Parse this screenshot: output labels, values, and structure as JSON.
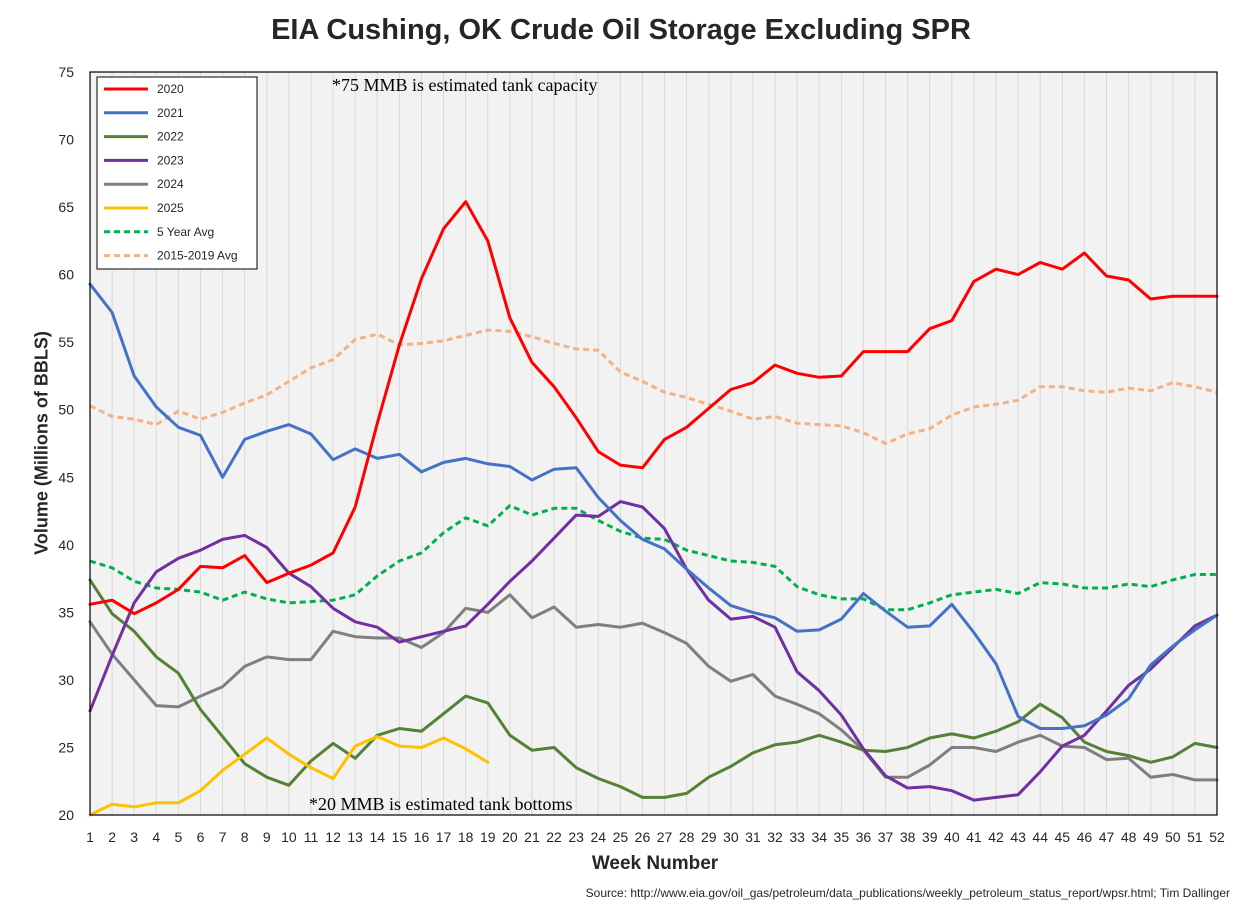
{
  "chart_data": {
    "type": "line",
    "title": "EIA Cushing, OK Crude Oil Storage Excluding SPR",
    "xlabel": "Week Number",
    "ylabel": "Volume (Millions of BBLS)",
    "xlim": [
      1,
      52
    ],
    "ylim": [
      20,
      75
    ],
    "yticks": [
      20,
      25,
      30,
      35,
      40,
      45,
      50,
      55,
      60,
      65,
      70,
      75
    ],
    "xticks": [
      1,
      2,
      3,
      4,
      5,
      6,
      7,
      8,
      9,
      10,
      11,
      12,
      13,
      14,
      15,
      16,
      17,
      18,
      19,
      20,
      21,
      22,
      23,
      24,
      25,
      26,
      27,
      28,
      29,
      30,
      31,
      32,
      33,
      34,
      35,
      36,
      37,
      38,
      39,
      40,
      41,
      42,
      43,
      44,
      45,
      46,
      47,
      48,
      49,
      50,
      51,
      52
    ],
    "grid": "vertical",
    "legend_position": "top-left",
    "annotations": [
      {
        "text": "*75 MMB is estimated tank capacity"
      },
      {
        "text": "*20 MMB is estimated tank bottoms"
      }
    ],
    "source": "Source: http://www.eia.gov/oil_gas/petroleum/data_publications/weekly_petroleum_status_report/wpsr.html; Tim Dallinger",
    "series": [
      {
        "name": "2020",
        "color": "#ff0000",
        "dash": false,
        "values": [
          35.6,
          35.9,
          34.9,
          35.7,
          36.7,
          38.4,
          38.3,
          39.2,
          37.2,
          37.9,
          38.5,
          39.4,
          42.8,
          49.0,
          54.8,
          59.7,
          63.4,
          65.4,
          62.5,
          56.8,
          53.5,
          51.7,
          49.4,
          46.9,
          45.9,
          45.7,
          47.8,
          48.7,
          50.1,
          51.5,
          52.0,
          53.3,
          52.7,
          52.4,
          52.5,
          54.3,
          54.3,
          54.3,
          56.0,
          56.6,
          59.5,
          60.4,
          60.0,
          60.9,
          60.4,
          61.6,
          59.9,
          59.6,
          58.2,
          58.4,
          58.4,
          58.4
        ]
      },
      {
        "name": "2021",
        "color": "#4472c4",
        "dash": false,
        "values": [
          59.3,
          57.2,
          52.5,
          50.2,
          48.7,
          48.1,
          45.0,
          47.8,
          48.4,
          48.9,
          48.2,
          46.3,
          47.1,
          46.4,
          46.7,
          45.4,
          46.1,
          46.4,
          46.0,
          45.8,
          44.8,
          45.6,
          45.7,
          43.5,
          41.8,
          40.4,
          39.7,
          38.2,
          36.8,
          35.5,
          35.0,
          34.6,
          33.6,
          33.7,
          34.5,
          36.4,
          35.1,
          33.9,
          34.0,
          35.6,
          33.5,
          31.2,
          27.3,
          26.4,
          26.4,
          26.6,
          27.4,
          28.6,
          31.1,
          32.5,
          33.7,
          34.8
        ]
      },
      {
        "name": "2022",
        "color": "#548235",
        "dash": false,
        "values": [
          37.4,
          34.9,
          33.6,
          31.7,
          30.5,
          27.8,
          25.8,
          23.8,
          22.8,
          22.2,
          24.0,
          25.3,
          24.2,
          25.9,
          26.4,
          26.2,
          27.5,
          28.8,
          28.3,
          25.9,
          24.8,
          25.0,
          23.5,
          22.7,
          22.1,
          21.3,
          21.3,
          21.6,
          22.8,
          23.6,
          24.6,
          25.2,
          25.4,
          25.9,
          25.4,
          24.8,
          24.7,
          25.0,
          25.7,
          26.0,
          25.7,
          26.2,
          26.9,
          28.2,
          27.2,
          25.4,
          24.7,
          24.4,
          23.9,
          24.3,
          25.3,
          25.0
        ]
      },
      {
        "name": "2023",
        "color": "#7030a0",
        "dash": false,
        "values": [
          27.7,
          31.8,
          35.7,
          38.0,
          39.0,
          39.6,
          40.4,
          40.7,
          39.8,
          37.9,
          36.9,
          35.3,
          34.3,
          33.9,
          32.8,
          33.2,
          33.6,
          34.0,
          35.6,
          37.3,
          38.8,
          40.5,
          42.2,
          42.1,
          43.2,
          42.8,
          41.2,
          38.2,
          35.9,
          34.5,
          34.7,
          33.9,
          30.6,
          29.2,
          27.4,
          24.9,
          22.9,
          22.0,
          22.1,
          21.8,
          21.1,
          21.3,
          21.5,
          23.2,
          25.1,
          25.9,
          27.7,
          29.6,
          30.8,
          32.4,
          34.0,
          34.8
        ]
      },
      {
        "name": "2024",
        "color": "#7f7f7f",
        "dash": false,
        "values": [
          34.3,
          31.9,
          30.0,
          28.1,
          28.0,
          28.8,
          29.5,
          31.0,
          31.7,
          31.5,
          31.5,
          33.6,
          33.2,
          33.1,
          33.1,
          32.4,
          33.5,
          35.3,
          35.0,
          36.3,
          34.6,
          35.4,
          33.9,
          34.1,
          33.9,
          34.2,
          33.5,
          32.7,
          31.0,
          29.9,
          30.4,
          28.8,
          28.2,
          27.5,
          26.3,
          24.8,
          22.8,
          22.8,
          23.7,
          25.0,
          25.0,
          24.7,
          25.4,
          25.9,
          25.1,
          25.0,
          24.1,
          24.2,
          22.8,
          23.0,
          22.6,
          22.6
        ]
      },
      {
        "name": "2025",
        "color": "#ffc000",
        "dash": false,
        "values": [
          20.0,
          20.8,
          20.6,
          20.9,
          20.9,
          21.8,
          23.3,
          24.5,
          25.7,
          24.5,
          23.5,
          22.7,
          25.1,
          25.8,
          25.1,
          25.0,
          25.7,
          24.9,
          23.9,
          null,
          null,
          null,
          null,
          null,
          null,
          null,
          null,
          null,
          null,
          null,
          null,
          null,
          null,
          null,
          null,
          null,
          null,
          null,
          null,
          null,
          null,
          null,
          null,
          null,
          null,
          null,
          null,
          null,
          null,
          null,
          null,
          null
        ]
      },
      {
        "name": "5 Year Avg",
        "color": "#00b050",
        "dash": true,
        "values": [
          38.8,
          38.3,
          37.3,
          36.8,
          36.7,
          36.5,
          35.9,
          36.5,
          36.0,
          35.7,
          35.8,
          35.9,
          36.3,
          37.7,
          38.8,
          39.4,
          40.9,
          42.0,
          41.4,
          42.9,
          42.2,
          42.7,
          42.7,
          41.8,
          41.0,
          40.5,
          40.4,
          39.6,
          39.2,
          38.8,
          38.7,
          38.4,
          36.9,
          36.3,
          36.0,
          36.0,
          35.2,
          35.2,
          35.7,
          36.3,
          36.5,
          36.7,
          36.4,
          37.2,
          37.1,
          36.8,
          36.8,
          37.1,
          36.9,
          37.4,
          37.8,
          37.8
        ]
      },
      {
        "name": "2015-2019 Avg",
        "color": "#f4b183",
        "dash": true,
        "values": [
          50.3,
          49.5,
          49.3,
          48.9,
          49.9,
          49.3,
          49.8,
          50.5,
          51.1,
          52.1,
          53.1,
          53.7,
          55.2,
          55.6,
          54.8,
          54.9,
          55.1,
          55.5,
          55.9,
          55.8,
          55.4,
          54.9,
          54.5,
          54.4,
          52.8,
          52.1,
          51.3,
          50.9,
          50.4,
          49.9,
          49.3,
          49.5,
          49.0,
          48.9,
          48.8,
          48.3,
          47.5,
          48.2,
          48.6,
          49.6,
          50.2,
          50.4,
          50.7,
          51.7,
          51.7,
          51.4,
          51.3,
          51.6,
          51.4,
          52.0,
          51.7,
          51.3
        ]
      }
    ]
  }
}
